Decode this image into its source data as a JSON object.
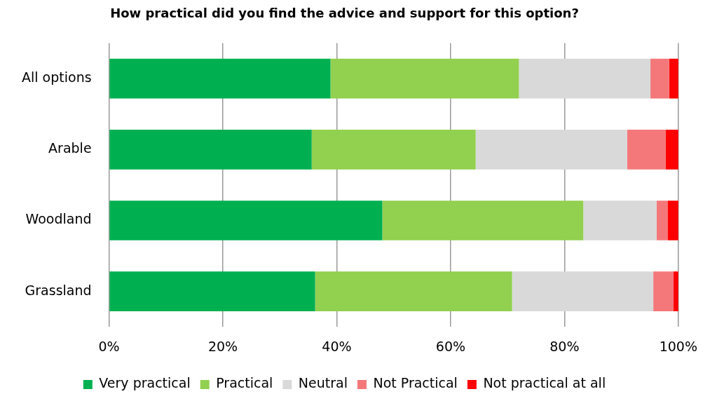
{
  "chart_data": {
    "type": "bar",
    "orientation": "horizontal",
    "stacked": true,
    "title": "How practical did you find the advice and support for this option?",
    "categories": [
      "All options",
      "Arable",
      "Woodland",
      "Grassland"
    ],
    "series": [
      {
        "name": "Very practical",
        "color": "#00b050",
        "values": [
          38.9,
          35.6,
          48.0,
          36.2
        ]
      },
      {
        "name": "Practical",
        "color": "#92d050",
        "values": [
          33.1,
          28.8,
          35.3,
          34.6
        ]
      },
      {
        "name": "Neutral",
        "color": "#d9d9d9",
        "values": [
          23.1,
          26.6,
          12.9,
          24.8
        ]
      },
      {
        "name": "Not Practical",
        "color": "#f4787a",
        "values": [
          3.3,
          6.8,
          1.9,
          3.5
        ]
      },
      {
        "name": "Not practical at all",
        "color": "#ff0000",
        "values": [
          1.6,
          2.2,
          1.9,
          0.9
        ]
      }
    ],
    "xlim": [
      0,
      100
    ],
    "xticks": [
      {
        "value": 0,
        "label": "0%"
      },
      {
        "value": 20,
        "label": "20%"
      },
      {
        "value": 40,
        "label": "40%"
      },
      {
        "value": 60,
        "label": "60%"
      },
      {
        "value": 80,
        "label": "80%"
      },
      {
        "value": 100,
        "label": "100%"
      }
    ],
    "grid": "x",
    "legend": "bottom"
  }
}
